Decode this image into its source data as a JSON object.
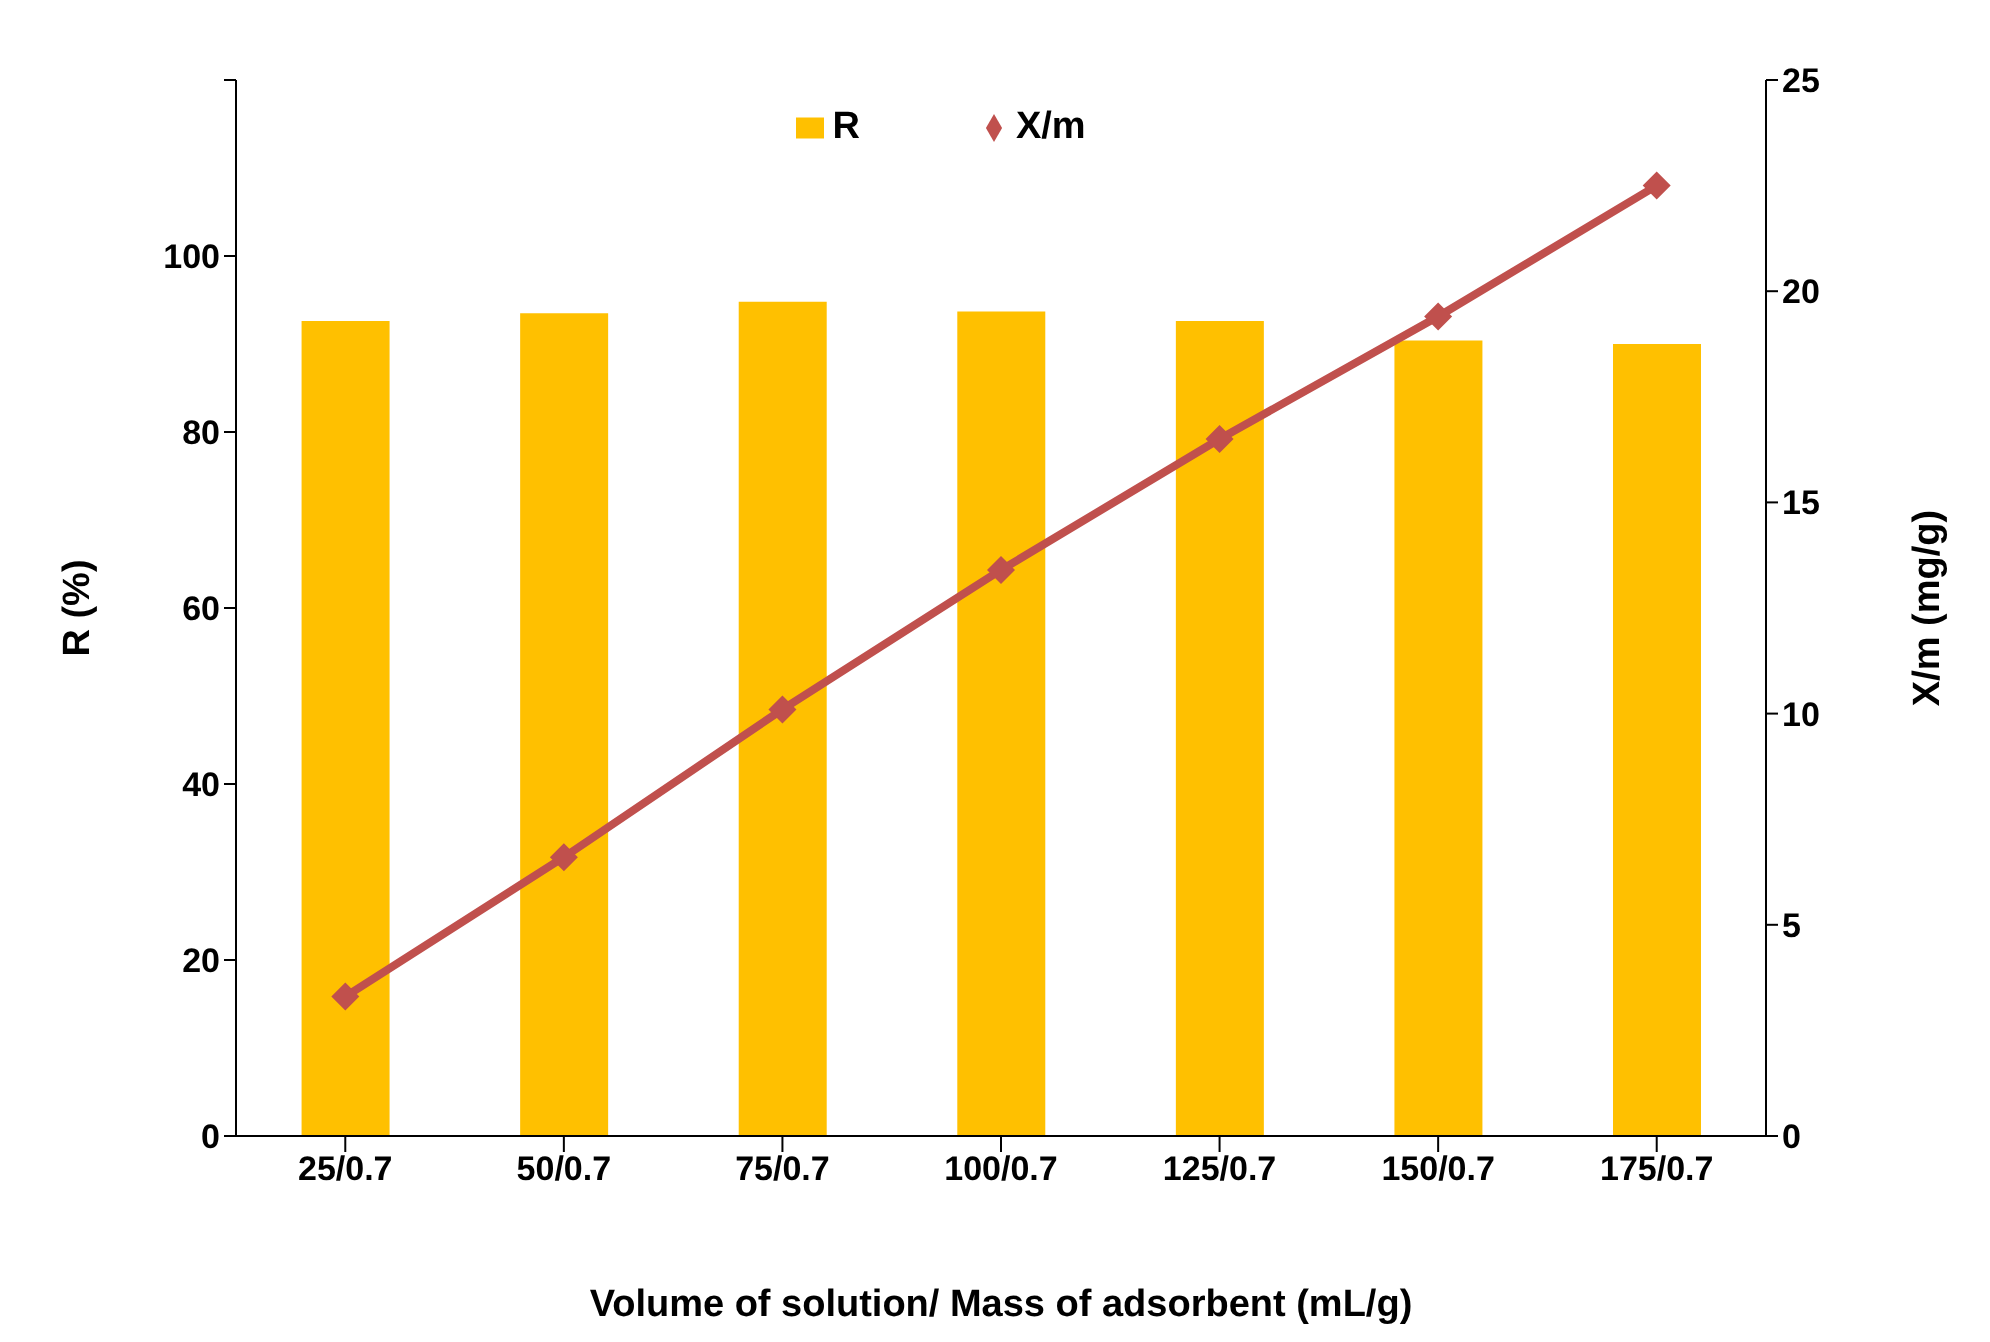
{
  "chart_data": {
    "type": "bar",
    "xlabel": "Volume of solution/ Mass of adsorbent (mL/g)",
    "ylabel": "R (%)",
    "y2label": "X/m (mg/g)",
    "categories": [
      "25/0.7",
      "50/0.7",
      "75/0.7",
      "100/0.7",
      "125/0.7",
      "150/0.7",
      "175/0.7"
    ],
    "series": [
      {
        "name": "R",
        "color": "#ffc000",
        "values": [
          92.6,
          93.5,
          94.8,
          93.7,
          92.6,
          90.4,
          90.0
        ]
      },
      {
        "name": "X/m",
        "type": "line",
        "axis": "y2",
        "color": "#c0504d",
        "marker": "diamond",
        "values": [
          3.3,
          6.6,
          10.1,
          13.4,
          16.5,
          19.4,
          22.5
        ]
      }
    ],
    "ylim": [
      0,
      120
    ],
    "yticks": [
      0,
      20,
      40,
      60,
      80,
      100,
      {
        "value": 120,
        "label": null
      }
    ],
    "y2lim": [
      0,
      25
    ],
    "y2ticks": [
      0,
      5,
      10,
      15,
      20,
      25
    ],
    "legend": "top"
  }
}
